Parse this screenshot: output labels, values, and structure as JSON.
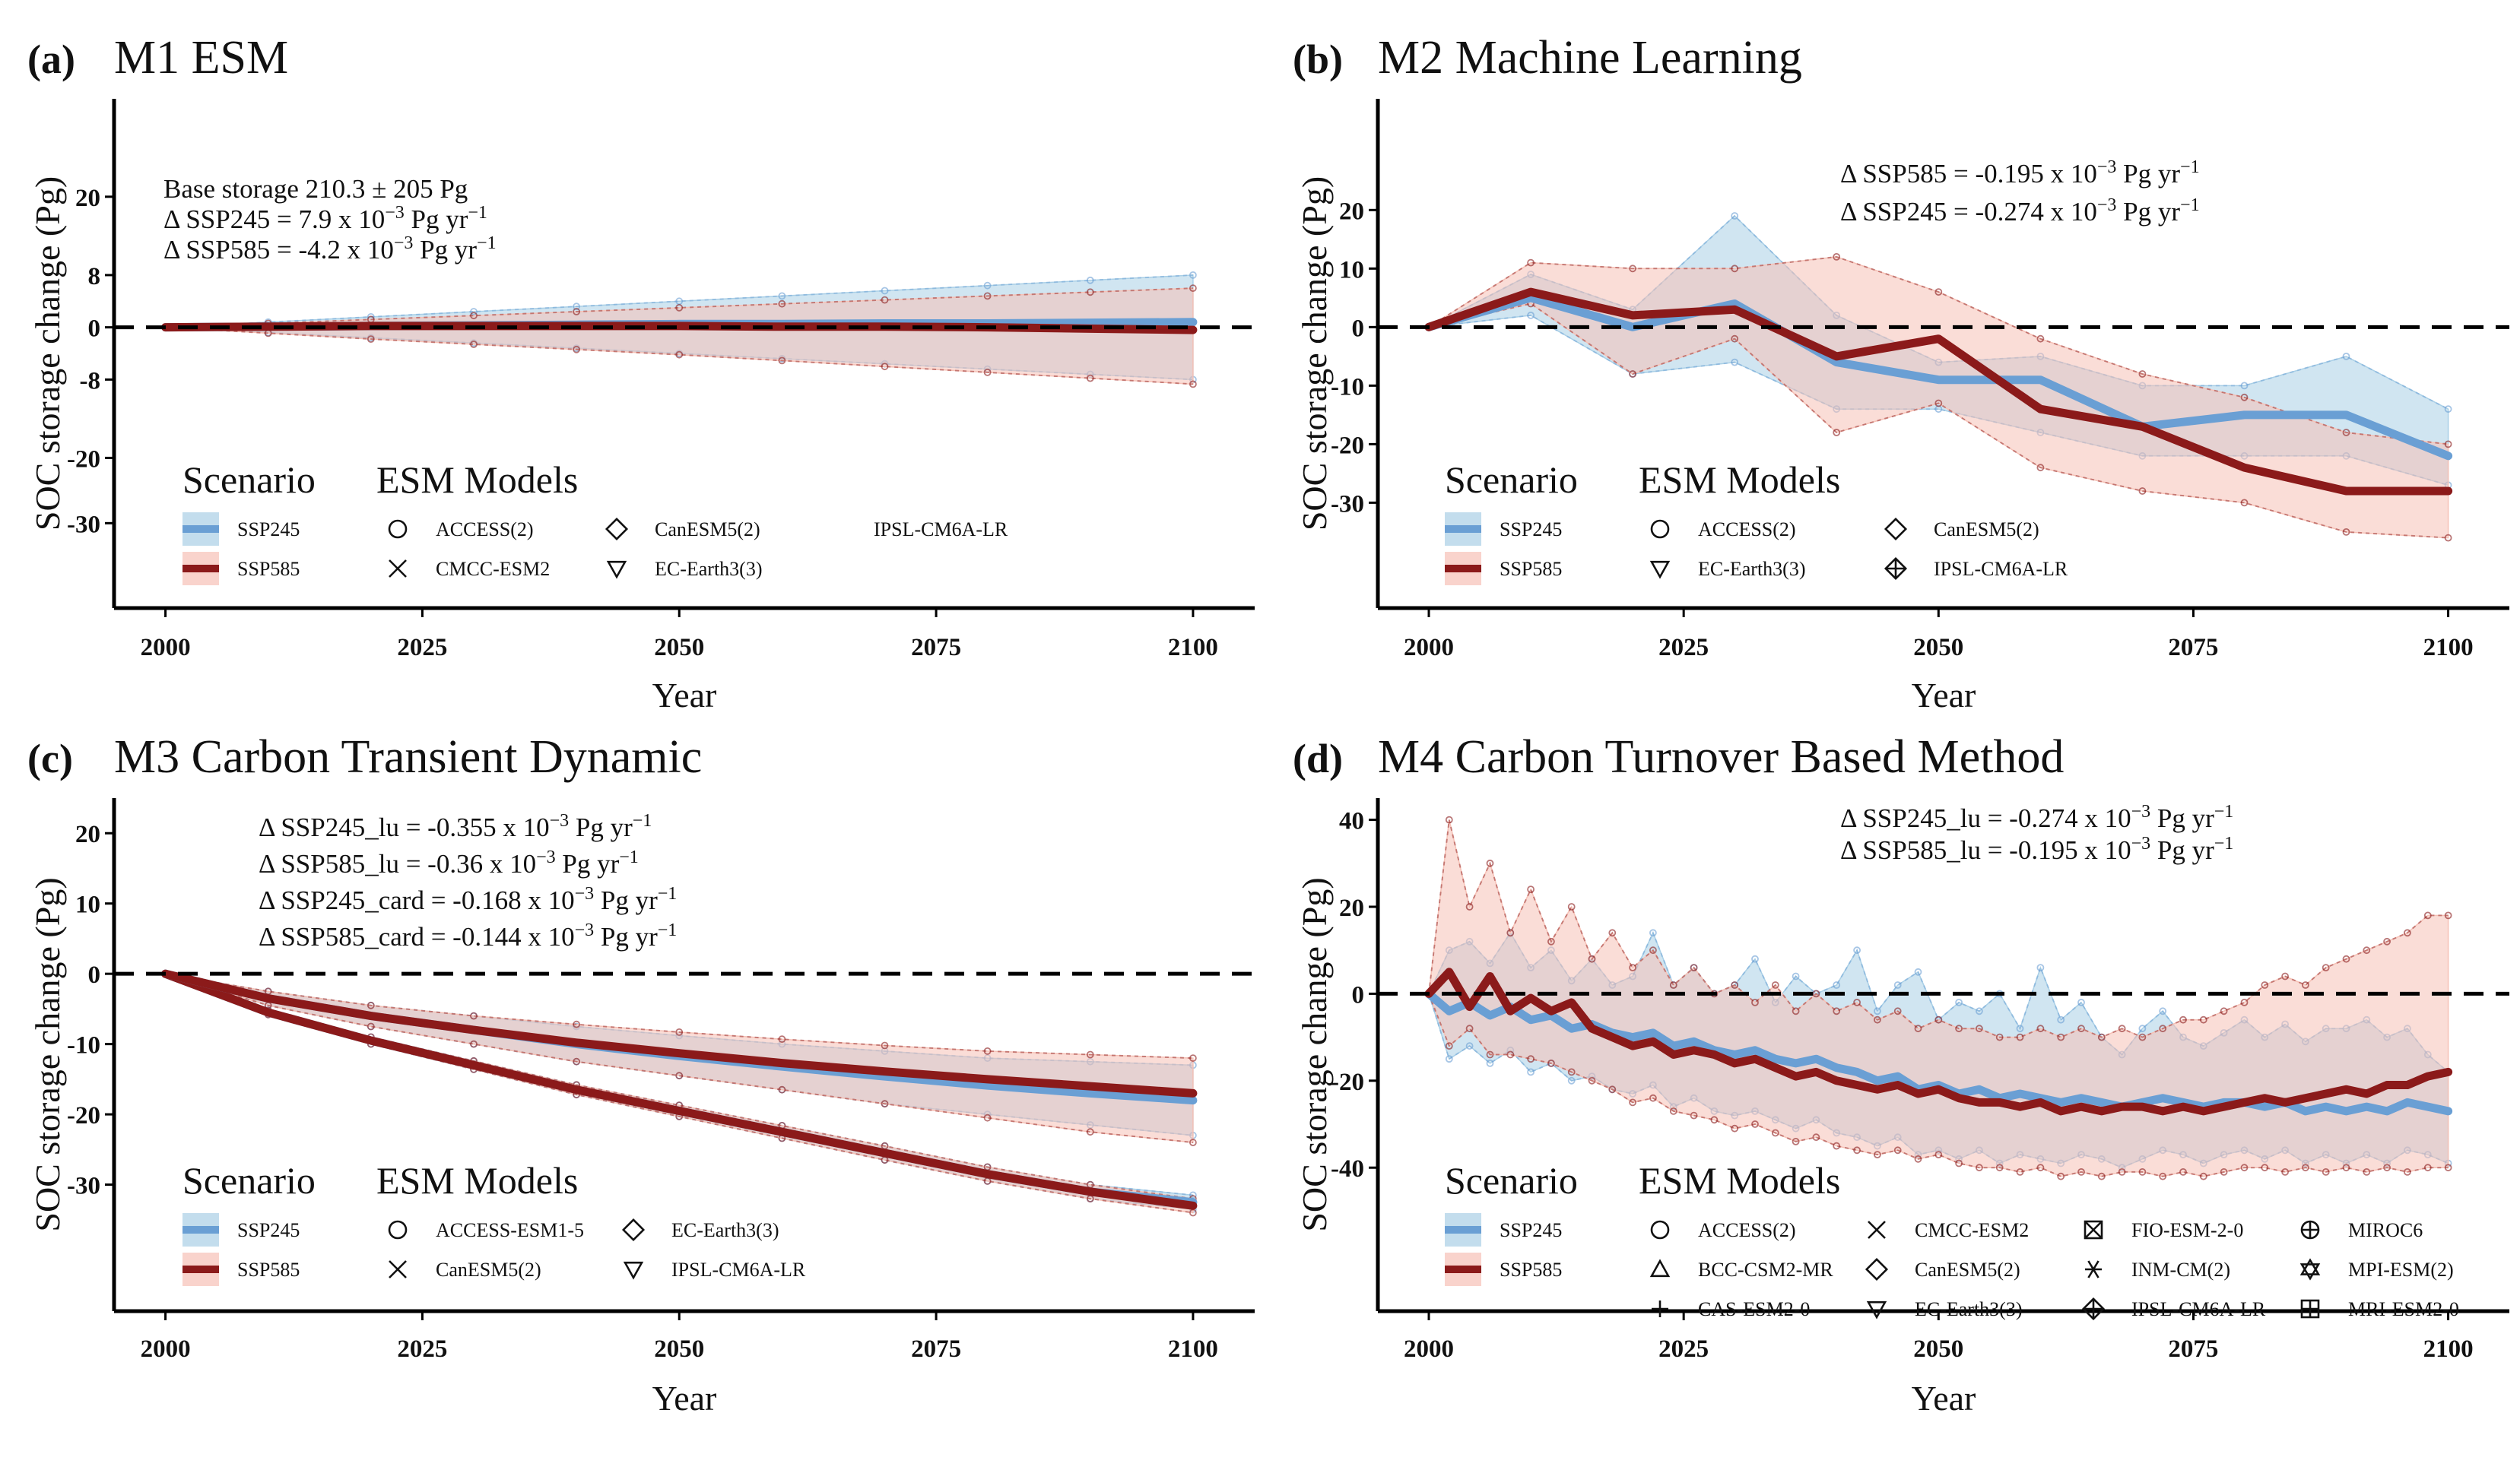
{
  "chart_data": [
    {
      "panel": "(a)",
      "title": "M1 ESM",
      "type": "line",
      "xlabel": "Year",
      "ylabel": "SOC storage change (Pg)",
      "xlim": [
        1995,
        2106
      ],
      "ylim": [
        -43,
        35
      ],
      "xticks": [
        2000,
        2025,
        2050,
        2075,
        2100
      ],
      "yticks": [
        20,
        8,
        0,
        -8,
        -20,
        -30
      ],
      "zero_line": true,
      "annotations": [
        "Base storage 210.3 ± 205 Pg",
        "Δ SSP245 = 7.9 x  10⁻³  Pg yr⁻¹",
        "Δ SSP585 = -4.2 x  10⁻³  Pg yr⁻¹"
      ],
      "legend": {
        "scenario_title": "Scenario",
        "scenarios": [
          "SSP245",
          "SSP585"
        ],
        "models_title": "ESM Models",
        "models": [
          {
            "label": "ACCESS(2)",
            "marker": "circle"
          },
          {
            "label": "CMCC-ESM2",
            "marker": "cross"
          },
          {
            "label": "CanESM5(2)",
            "marker": "diamond"
          },
          {
            "label": "EC-Earth3(3)",
            "marker": "triangle-down"
          },
          {
            "label": "IPSL-CM6A-LR",
            "marker": "none"
          }
        ],
        "model_cols": 3
      },
      "x": [
        2000,
        2010,
        2020,
        2030,
        2040,
        2050,
        2060,
        2070,
        2080,
        2090,
        2100
      ],
      "series": [
        {
          "name": "SSP245",
          "values": [
            0,
            0.1,
            0.2,
            0.3,
            0.4,
            0.5,
            0.5,
            0.6,
            0.6,
            0.7,
            0.8
          ],
          "lower": [
            0,
            -0.8,
            -1.6,
            -2.4,
            -3.2,
            -4.0,
            -4.8,
            -5.6,
            -6.4,
            -7.2,
            -8.0
          ],
          "upper": [
            0,
            0.8,
            1.6,
            2.4,
            3.2,
            4.0,
            4.8,
            5.6,
            6.4,
            7.2,
            8.0
          ]
        },
        {
          "name": "SSP585",
          "values": [
            0,
            0.1,
            0.2,
            0.2,
            0.2,
            0.2,
            0.1,
            0.1,
            0.0,
            -0.2,
            -0.4
          ],
          "lower": [
            0,
            -0.9,
            -1.8,
            -2.6,
            -3.4,
            -4.2,
            -5.1,
            -6.0,
            -6.9,
            -7.8,
            -8.7
          ],
          "upper": [
            0,
            0.6,
            1.2,
            1.8,
            2.4,
            3.0,
            3.6,
            4.2,
            4.8,
            5.4,
            6.0
          ]
        }
      ]
    },
    {
      "panel": "(b)",
      "title": "M2 Machine Learning",
      "type": "line",
      "xlabel": "Year",
      "ylabel": "SOC storage change (Pg)",
      "xlim": [
        1995,
        2106
      ],
      "ylim": [
        -48,
        39
      ],
      "xticks": [
        2000,
        2025,
        2050,
        2075,
        2100
      ],
      "yticks": [
        20,
        10,
        0,
        -10,
        -20,
        -30
      ],
      "zero_line": true,
      "annotations": [
        "Δ SSP585 =  -0.195  x  10⁻³  Pg yr⁻¹",
        "Δ SSP245 =  -0.274  x  10⁻³  Pg yr⁻¹"
      ],
      "legend": {
        "scenario_title": "Scenario",
        "scenarios": [
          "SSP245",
          "SSP585"
        ],
        "models_title": "ESM Models",
        "models": [
          {
            "label": "ACCESS(2)",
            "marker": "circle"
          },
          {
            "label": "EC-Earth3(3)",
            "marker": "triangle-down"
          },
          {
            "label": "CanESM5(2)",
            "marker": "diamond"
          },
          {
            "label": "IPSL-CM6A-LR",
            "marker": "diamond-plus"
          }
        ],
        "model_cols": 2
      },
      "x": [
        2000,
        2010,
        2020,
        2030,
        2040,
        2050,
        2060,
        2070,
        2080,
        2090,
        2100
      ],
      "series": [
        {
          "name": "SSP245",
          "values": [
            0,
            5,
            0,
            4,
            -6,
            -9,
            -9,
            -17,
            -15,
            -15,
            -22
          ],
          "lower": [
            0,
            2,
            -8,
            -6,
            -14,
            -14,
            -18,
            -22,
            -22,
            -22,
            -27
          ],
          "upper": [
            0,
            9,
            3,
            19,
            2,
            -6,
            -5,
            -10,
            -10,
            -5,
            -14
          ]
        },
        {
          "name": "SSP585",
          "values": [
            0,
            6,
            2,
            3,
            -5,
            -2,
            -14,
            -17,
            -24,
            -28,
            -28
          ],
          "lower": [
            0,
            4,
            -8,
            -2,
            -18,
            -13,
            -24,
            -28,
            -30,
            -35,
            -36
          ],
          "upper": [
            0,
            11,
            10,
            10,
            12,
            6,
            -2,
            -8,
            -12,
            -18,
            -20
          ]
        }
      ]
    },
    {
      "panel": "(c)",
      "title": "M3 Carbon Transient Dynamic",
      "type": "line",
      "xlabel": "Year",
      "ylabel": "SOC storage change (Pg)",
      "xlim": [
        1995,
        2106
      ],
      "ylim": [
        -48,
        25
      ],
      "xticks": [
        2000,
        2025,
        2050,
        2075,
        2100
      ],
      "yticks": [
        20,
        10,
        0,
        -10,
        -20,
        -30
      ],
      "zero_line": true,
      "annotations": [
        "Δ SSP245_lu =  -0.355   x   10⁻³  Pg yr⁻¹",
        "Δ SSP585_lu =  -0.36   x   10⁻³  Pg yr⁻¹",
        "Δ SSP245_card =  -0.168   x   10⁻³  Pg yr⁻¹",
        "Δ SSP585_card =  -0.144   x   10⁻³  Pg yr⁻¹"
      ],
      "legend": {
        "scenario_title": "Scenario",
        "scenarios": [
          "SSP245",
          "SSP585"
        ],
        "models_title": "ESM Models",
        "models": [
          {
            "label": "ACCESS-ESM1-5",
            "marker": "circle"
          },
          {
            "label": "CanESM5(2)",
            "marker": "cross"
          },
          {
            "label": "EC-Earth3(3)",
            "marker": "diamond"
          },
          {
            "label": "IPSL-CM6A-LR",
            "marker": "triangle-down"
          }
        ],
        "model_cols": 2
      },
      "x": [
        2000,
        2010,
        2020,
        2030,
        2040,
        2050,
        2060,
        2070,
        2080,
        2090,
        2100
      ],
      "series": [
        {
          "name": "SSP245_lu",
          "color_key": "ssp245",
          "values": [
            0,
            -5.5,
            -9.5,
            -13,
            -16.5,
            -19.5,
            -22.5,
            -25.5,
            -28.5,
            -31,
            -32.5
          ],
          "lower": [
            0,
            -5.8,
            -10,
            -13.6,
            -17.2,
            -20.3,
            -23.4,
            -26.5,
            -29.5,
            -32,
            -33.5
          ],
          "upper": [
            0,
            -5.2,
            -9,
            -12.4,
            -15.8,
            -18.7,
            -21.6,
            -24.5,
            -27.5,
            -30,
            -31.5
          ]
        },
        {
          "name": "SSP585_lu",
          "color_key": "ssp585",
          "values": [
            0,
            -5.5,
            -9.5,
            -13,
            -16.5,
            -19.5,
            -22.5,
            -25.5,
            -28.5,
            -31,
            -33
          ],
          "lower": [
            0,
            -5.8,
            -10,
            -13.6,
            -17.2,
            -20.3,
            -23.4,
            -26.5,
            -29.5,
            -32,
            -34
          ],
          "upper": [
            0,
            -5.2,
            -9,
            -12.4,
            -15.8,
            -18.7,
            -21.6,
            -24.5,
            -27.5,
            -30,
            -32
          ]
        },
        {
          "name": "SSP245_card",
          "color_key": "ssp245",
          "values": [
            0,
            -3.5,
            -6,
            -8,
            -10,
            -11.7,
            -13.2,
            -14.6,
            -15.9,
            -17,
            -18
          ],
          "lower": [
            0,
            -4.5,
            -7.5,
            -10,
            -12.5,
            -14.5,
            -16.5,
            -18.5,
            -20,
            -21.5,
            -23
          ],
          "upper": [
            0,
            -2.5,
            -4.5,
            -6,
            -7.5,
            -8.8,
            -10,
            -11,
            -12,
            -12.5,
            -13
          ]
        },
        {
          "name": "SSP585_card",
          "color_key": "ssp585",
          "values": [
            0,
            -3.5,
            -6,
            -8,
            -9.8,
            -11.3,
            -12.7,
            -13.9,
            -15,
            -16,
            -17
          ],
          "lower": [
            0,
            -4.5,
            -7.5,
            -10,
            -12.5,
            -14.5,
            -16.5,
            -18.5,
            -20.5,
            -22.5,
            -24
          ],
          "upper": [
            0,
            -2.5,
            -4.5,
            -6,
            -7.2,
            -8.3,
            -9.3,
            -10.2,
            -11,
            -11.5,
            -12
          ]
        }
      ]
    },
    {
      "panel": "(d)",
      "title": "M4 Carbon Turnover Based Method",
      "type": "line",
      "xlabel": "Year",
      "ylabel": "SOC storage change (Pg)",
      "xlim": [
        1995,
        2106
      ],
      "ylim": [
        -73,
        45
      ],
      "xticks": [
        2000,
        2025,
        2050,
        2075,
        2100
      ],
      "yticks": [
        40,
        20,
        0,
        -20,
        -40
      ],
      "zero_line": true,
      "annotations": [
        "Δ SSP245_lu =  -0.274   x   10⁻³  Pg yr⁻¹",
        "Δ SSP585_lu =  -0.195   x   10⁻³  Pg yr⁻¹"
      ],
      "legend": {
        "scenario_title": "Scenario",
        "scenarios": [
          "SSP245",
          "SSP585"
        ],
        "models_title": "ESM Models",
        "models": [
          {
            "label": "ACCESS(2)",
            "marker": "circle"
          },
          {
            "label": "BCC-CSM2-MR",
            "marker": "triangle-up"
          },
          {
            "label": "CAS-ESM2-0",
            "marker": "plus"
          },
          {
            "label": "CMCC-ESM2",
            "marker": "cross"
          },
          {
            "label": "CanESM5(2)",
            "marker": "diamond"
          },
          {
            "label": "EC-Earth3(3)",
            "marker": "triangle-down"
          },
          {
            "label": "FIO-ESM-2-0",
            "marker": "square-cross"
          },
          {
            "label": "INM-CM(2)",
            "marker": "asterisk"
          },
          {
            "label": "IPSL-CM6A-LR",
            "marker": "diamond-plus"
          },
          {
            "label": "MIROC6",
            "marker": "circle-plus"
          },
          {
            "label": "MPI-ESM(2)",
            "marker": "star-of-david"
          },
          {
            "label": "MRI-ESM2-0",
            "marker": "square-plus"
          }
        ],
        "model_cols": 4
      },
      "x": [
        2000,
        2002,
        2004,
        2006,
        2008,
        2010,
        2012,
        2014,
        2016,
        2018,
        2020,
        2022,
        2024,
        2026,
        2028,
        2030,
        2032,
        2034,
        2036,
        2038,
        2040,
        2042,
        2044,
        2046,
        2048,
        2050,
        2052,
        2054,
        2056,
        2058,
        2060,
        2062,
        2064,
        2066,
        2068,
        2070,
        2072,
        2074,
        2076,
        2078,
        2080,
        2082,
        2084,
        2086,
        2088,
        2090,
        2092,
        2094,
        2096,
        2098,
        2100
      ],
      "series": [
        {
          "name": "SSP245",
          "values": [
            0,
            -4,
            -2,
            -5,
            -3,
            -6,
            -5,
            -8,
            -7,
            -9,
            -10,
            -9,
            -12,
            -11,
            -13,
            -14,
            -13,
            -15,
            -16,
            -15,
            -17,
            -18,
            -20,
            -19,
            -22,
            -21,
            -23,
            -22,
            -24,
            -23,
            -24,
            -25,
            -24,
            -25,
            -26,
            -25,
            -24,
            -25,
            -26,
            -25,
            -25,
            -26,
            -25,
            -27,
            -26,
            -27,
            -26,
            -27,
            -25,
            -26,
            -27
          ],
          "lower": [
            0,
            -15,
            -12,
            -16,
            -13,
            -18,
            -16,
            -20,
            -19,
            -22,
            -23,
            -21,
            -26,
            -24,
            -27,
            -28,
            -27,
            -29,
            -31,
            -29,
            -32,
            -33,
            -35,
            -33,
            -37,
            -36,
            -38,
            -36,
            -39,
            -37,
            -38,
            -39,
            -37,
            -38,
            -40,
            -38,
            -36,
            -37,
            -39,
            -37,
            -36,
            -38,
            -36,
            -39,
            -37,
            -39,
            -37,
            -39,
            -36,
            -37,
            -39
          ],
          "upper": [
            0,
            10,
            12,
            7,
            14,
            6,
            10,
            3,
            8,
            2,
            4,
            14,
            2,
            6,
            0,
            2,
            8,
            -2,
            4,
            0,
            2,
            10,
            -4,
            2,
            5,
            -6,
            -2,
            -4,
            0,
            -8,
            6,
            -6,
            -2,
            -10,
            -14,
            -8,
            -4,
            -10,
            -12,
            -9,
            -6,
            -10,
            -7,
            -11,
            -8,
            -8,
            -6,
            -10,
            -8,
            -14,
            -18
          ]
        },
        {
          "name": "SSP585",
          "values": [
            0,
            5,
            -3,
            4,
            -4,
            -1,
            -4,
            -2,
            -8,
            -10,
            -12,
            -11,
            -14,
            -13,
            -14,
            -16,
            -15,
            -17,
            -19,
            -18,
            -20,
            -21,
            -22,
            -21,
            -23,
            -22,
            -24,
            -25,
            -25,
            -26,
            -25,
            -27,
            -26,
            -27,
            -26,
            -26,
            -27,
            -26,
            -27,
            -26,
            -25,
            -24,
            -25,
            -24,
            -23,
            -22,
            -23,
            -21,
            -21,
            -19,
            -18
          ],
          "lower": [
            0,
            -12,
            -8,
            -14,
            -14,
            -15,
            -16,
            -18,
            -20,
            -22,
            -25,
            -24,
            -27,
            -28,
            -29,
            -31,
            -30,
            -32,
            -34,
            -33,
            -35,
            -36,
            -37,
            -36,
            -38,
            -37,
            -39,
            -40,
            -40,
            -41,
            -40,
            -42,
            -41,
            -42,
            -41,
            -41,
            -42,
            -41,
            -42,
            -41,
            -40,
            -40,
            -41,
            -40,
            -41,
            -40,
            -41,
            -40,
            -41,
            -40,
            -40
          ],
          "upper": [
            0,
            40,
            20,
            30,
            14,
            24,
            12,
            20,
            8,
            14,
            6,
            10,
            2,
            6,
            0,
            2,
            -2,
            2,
            -4,
            0,
            -4,
            -2,
            -6,
            -4,
            -8,
            -6,
            -8,
            -8,
            -10,
            -10,
            -8,
            -10,
            -8,
            -10,
            -8,
            -10,
            -8,
            -6,
            -6,
            -4,
            -2,
            2,
            4,
            2,
            6,
            8,
            10,
            12,
            14,
            18,
            18
          ]
        }
      ]
    }
  ],
  "colors": {
    "ssp245": "#6a9fd4",
    "ssp245_band": "#a9cfe6",
    "ssp585": "#8b1a1a",
    "ssp585_band": "#f6c1b6",
    "axis": "#000000"
  }
}
